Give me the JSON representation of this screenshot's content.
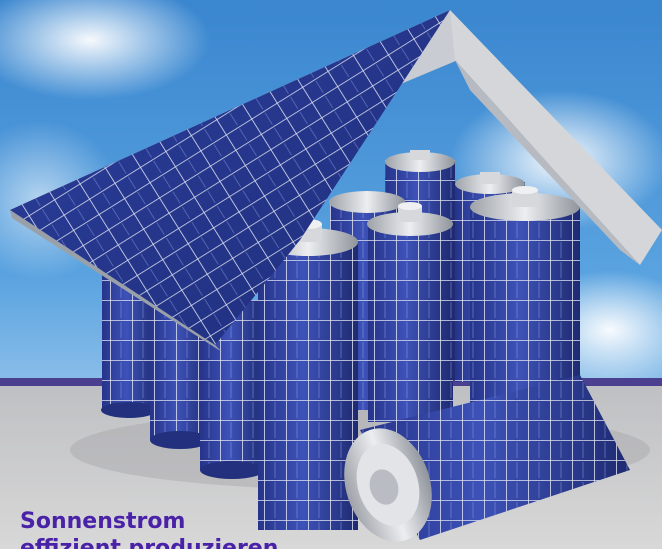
{
  "caption": {
    "line1": "Sonnenstrom",
    "line2": "effizient produzieren",
    "color": "#4a22a8"
  },
  "colors": {
    "sky": "#3f8fd3",
    "ground": "#d3d3d3",
    "ground_band": "#4b3f8f",
    "panel": "#2f3f99",
    "panel_grid": "#e2e6f4",
    "roof_edge": "#c9ccd2",
    "battery_cap": "#c4c7cc"
  }
}
